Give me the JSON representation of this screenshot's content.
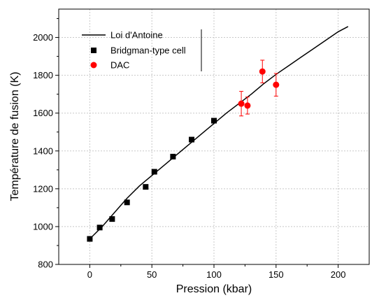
{
  "chart_data": {
    "type": "scatter",
    "xlabel": "Pression (kbar)",
    "ylabel": "Température de fusion (K)",
    "xlim": [
      -25,
      225
    ],
    "ylim": [
      800,
      2150
    ],
    "xticks": [
      0,
      50,
      100,
      150,
      200
    ],
    "yticks": [
      800,
      1000,
      1200,
      1400,
      1600,
      1800,
      2000
    ],
    "grid": true,
    "legend_position": "top-left",
    "series": [
      {
        "name": "Loi d'Antoine",
        "kind": "line",
        "color": "#000000",
        "x": [
          0,
          10,
          20,
          30,
          40,
          50,
          60,
          70,
          80,
          90,
          100,
          110,
          120,
          130,
          140,
          150,
          160,
          170,
          180,
          190,
          200,
          208
        ],
        "y": [
          935,
          1000,
          1075,
          1150,
          1215,
          1270,
          1325,
          1380,
          1435,
          1490,
          1545,
          1600,
          1650,
          1700,
          1755,
          1805,
          1850,
          1895,
          1940,
          1985,
          2030,
          2058
        ]
      },
      {
        "name": "Bridgman-type cell",
        "kind": "marker-square",
        "color": "#000000",
        "x": [
          0,
          8,
          18,
          30,
          45,
          52,
          67,
          82,
          100
        ],
        "y": [
          935,
          995,
          1040,
          1128,
          1210,
          1290,
          1370,
          1460,
          1560
        ]
      },
      {
        "name": "DAC",
        "kind": "marker-circle",
        "color": "#ff0000",
        "x": [
          122,
          127,
          139,
          150
        ],
        "y": [
          1650,
          1640,
          1820,
          1750
        ],
        "error_y": [
          65,
          45,
          60,
          60
        ]
      }
    ]
  }
}
